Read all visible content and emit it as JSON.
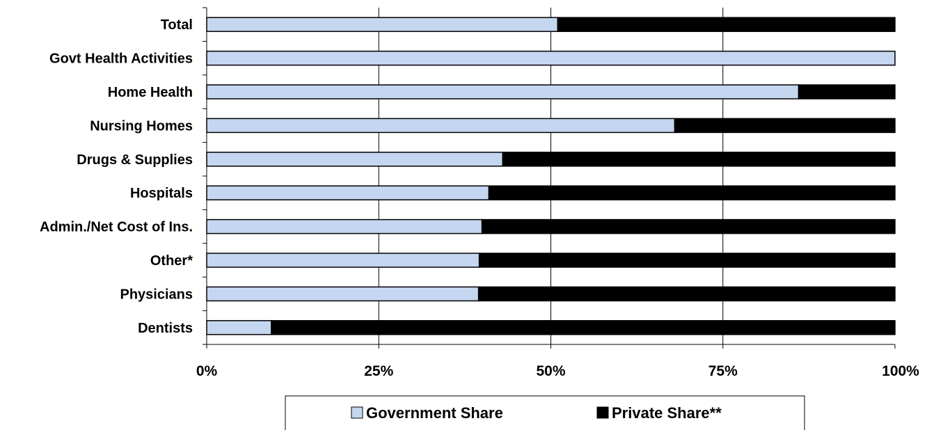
{
  "chart_data": {
    "type": "bar",
    "orientation": "horizontal",
    "stacked": true,
    "categories": [
      "Total",
      "Govt Health Activities",
      "Home Health",
      "Nursing Homes",
      "Drugs & Supplies",
      "Hospitals",
      "Admin./Net Cost of Ins.",
      "Other*",
      "Physicians",
      "Dentists"
    ],
    "series": [
      {
        "name": "Government Share",
        "color": "#c5d6f0",
        "values": [
          51,
          100,
          86,
          68,
          43,
          41,
          40,
          39.6,
          39.5,
          9.4
        ]
      },
      {
        "name": "Private Share**",
        "color": "#000000",
        "values": [
          49,
          0,
          14,
          32,
          57,
          59,
          60,
          60.4,
          60.5,
          90.6
        ]
      }
    ],
    "xlim": [
      0,
      100
    ],
    "x_ticks": [
      "0%",
      "25%",
      "50%",
      "75%",
      "100%"
    ],
    "grid": "vertical",
    "legend_position": "bottom",
    "title": "",
    "xlabel": "",
    "ylabel": ""
  }
}
